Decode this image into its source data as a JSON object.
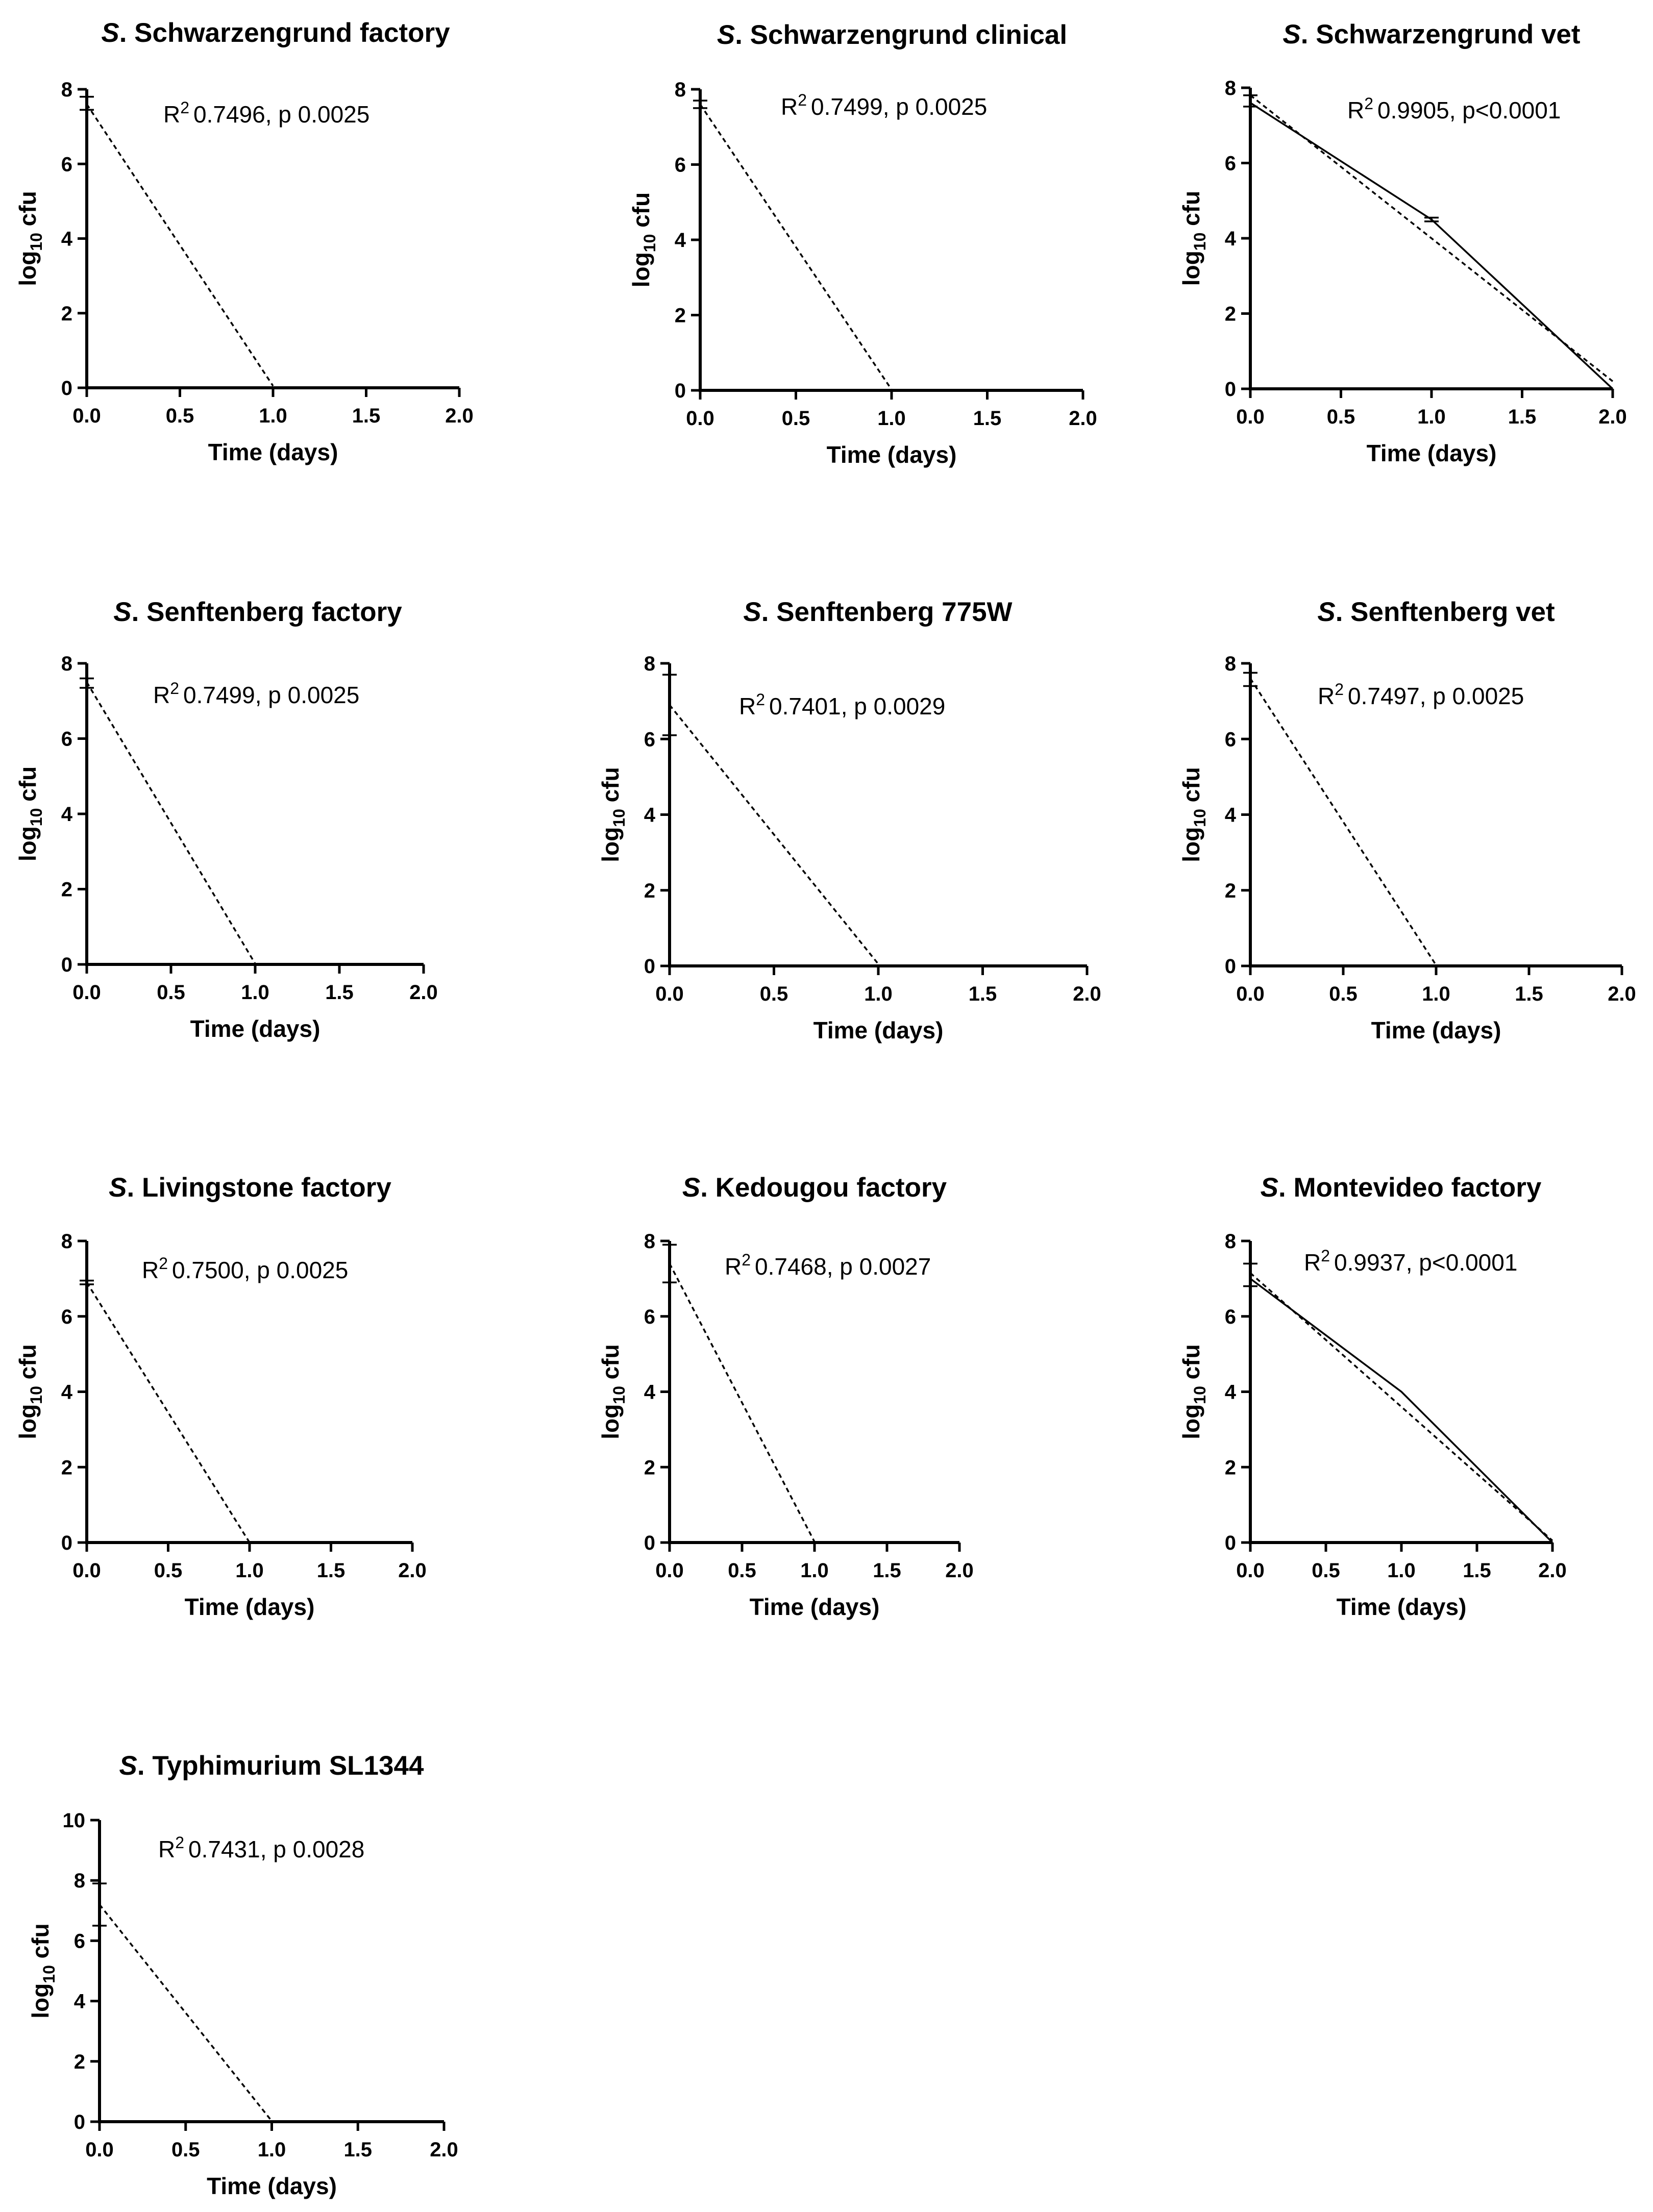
{
  "chart_data": [
    {
      "type": "line",
      "title_prefix": "S",
      "title": ". Schwarzengrund factory",
      "xlabel": "Time (days)",
      "ylabel": "log10 cfu",
      "xlim": [
        0,
        2
      ],
      "ylim": [
        0,
        8
      ],
      "xticks": [
        "0.0",
        "0.5",
        "1.0",
        "1.5",
        "2.0"
      ],
      "yticks": [
        "0",
        "2",
        "4",
        "6",
        "8"
      ],
      "annotation": "0.7496, p 0.0025",
      "mean_points": [
        [
          0,
          7.6
        ],
        [
          1,
          0
        ]
      ],
      "error_bars": [
        [
          0,
          7.45,
          7.8
        ],
        [
          1,
          0,
          0
        ]
      ],
      "fit_line": [
        [
          0,
          7.6
        ],
        [
          1,
          0.05
        ]
      ]
    },
    {
      "type": "line",
      "title_prefix": "S",
      "title": ". Schwarzengrund clinical",
      "xlabel": "Time (days)",
      "ylabel": "log10 cfu",
      "xlim": [
        0,
        2
      ],
      "ylim": [
        0,
        8
      ],
      "xticks": [
        "0.0",
        "0.5",
        "1.0",
        "1.5",
        "2.0"
      ],
      "yticks": [
        "0",
        "2",
        "4",
        "6",
        "8"
      ],
      "annotation": "0.7499, p 0.0025",
      "mean_points": [
        [
          0,
          7.6
        ],
        [
          1,
          0
        ]
      ],
      "error_bars": [
        [
          0,
          7.5,
          7.7
        ],
        [
          1,
          0,
          0
        ]
      ],
      "fit_line": [
        [
          0,
          7.6
        ],
        [
          1,
          0.02
        ]
      ]
    },
    {
      "type": "line",
      "title_prefix": "S",
      "title": ". Schwarzengrund vet",
      "xlabel": "Time (days)",
      "ylabel": "log10 cfu",
      "xlim": [
        0,
        2
      ],
      "ylim": [
        0,
        8
      ],
      "xticks": [
        "0.0",
        "0.5",
        "1.0",
        "1.5",
        "2.0"
      ],
      "yticks": [
        "0",
        "2",
        "4",
        "6",
        "8"
      ],
      "annotation": "0.9905, p<0.0001",
      "mean_points": [
        [
          0,
          7.6
        ],
        [
          1,
          4.5
        ],
        [
          2,
          0
        ]
      ],
      "error_bars": [
        [
          0,
          7.5,
          7.8
        ],
        [
          1,
          4.45,
          4.55
        ],
        [
          2,
          0,
          0
        ]
      ],
      "fit_line": [
        [
          0,
          7.8
        ],
        [
          2,
          0.2
        ]
      ]
    },
    {
      "type": "line",
      "title_prefix": "S",
      "title": ". Senftenberg factory",
      "xlabel": "Time (days)",
      "ylabel": "log10 cfu",
      "xlim": [
        0,
        2
      ],
      "ylim": [
        0,
        8
      ],
      "xticks": [
        "0.0",
        "0.5",
        "1.0",
        "1.5",
        "2.0"
      ],
      "yticks": [
        "0",
        "2",
        "4",
        "6",
        "8"
      ],
      "annotation": "0.7499, p 0.0025",
      "mean_points": [
        [
          0,
          7.5
        ],
        [
          1,
          0
        ]
      ],
      "error_bars": [
        [
          0,
          7.35,
          7.6
        ],
        [
          1,
          0,
          0
        ]
      ],
      "fit_line": [
        [
          0,
          7.5
        ],
        [
          1,
          0.02
        ]
      ]
    },
    {
      "type": "line",
      "title_prefix": "S",
      "title": ". Senftenberg 775W",
      "xlabel": "Time (days)",
      "ylabel": "log10 cfu",
      "xlim": [
        0,
        2
      ],
      "ylim": [
        0,
        8
      ],
      "xticks": [
        "0.0",
        "0.5",
        "1.0",
        "1.5",
        "2.0"
      ],
      "yticks": [
        "0",
        "2",
        "4",
        "6",
        "8"
      ],
      "annotation": "0.7401, p 0.0029",
      "mean_points": [
        [
          0,
          6.9
        ],
        [
          1,
          0
        ]
      ],
      "error_bars": [
        [
          0,
          6.1,
          7.7
        ],
        [
          1,
          0,
          0
        ]
      ],
      "fit_line": [
        [
          0,
          6.9
        ],
        [
          1,
          0.05
        ]
      ]
    },
    {
      "type": "line",
      "title_prefix": "S",
      "title": ". Senftenberg vet",
      "xlabel": "Time (days)",
      "ylabel": "log10 cfu",
      "xlim": [
        0,
        2
      ],
      "ylim": [
        0,
        8
      ],
      "xticks": [
        "0.0",
        "0.5",
        "1.0",
        "1.5",
        "2.0"
      ],
      "yticks": [
        "0",
        "2",
        "4",
        "6",
        "8"
      ],
      "annotation": "0.7497, p 0.0025",
      "mean_points": [
        [
          0,
          7.6
        ],
        [
          1,
          0
        ]
      ],
      "error_bars": [
        [
          0,
          7.4,
          7.75
        ],
        [
          1,
          0,
          0
        ]
      ],
      "fit_line": [
        [
          0,
          7.6
        ],
        [
          1,
          0.02
        ]
      ]
    },
    {
      "type": "line",
      "title_prefix": "S",
      "title": ". Livingstone factory",
      "xlabel": "Time (days)",
      "ylabel": "log10 cfu",
      "xlim": [
        0,
        2
      ],
      "ylim": [
        0,
        8
      ],
      "xticks": [
        "0.0",
        "0.5",
        "1.0",
        "1.5",
        "2.0"
      ],
      "yticks": [
        "0",
        "2",
        "4",
        "6",
        "8"
      ],
      "annotation": "0.7500, p 0.0025",
      "mean_points": [
        [
          0,
          6.9
        ],
        [
          1,
          0
        ]
      ],
      "error_bars": [
        [
          0,
          6.85,
          6.95
        ],
        [
          1,
          0,
          0
        ]
      ],
      "fit_line": [
        [
          0,
          6.9
        ],
        [
          1,
          0
        ]
      ]
    },
    {
      "type": "line",
      "title_prefix": "S",
      "title": ". Kedougou factory",
      "xlabel": "Time (days)",
      "ylabel": "log10 cfu",
      "xlim": [
        0,
        2
      ],
      "ylim": [
        0,
        8
      ],
      "xticks": [
        "0.0",
        "0.5",
        "1.0",
        "1.5",
        "2.0"
      ],
      "yticks": [
        "0",
        "2",
        "4",
        "6",
        "8"
      ],
      "annotation": "0.7468, p 0.0027",
      "mean_points": [
        [
          0,
          7.4
        ],
        [
          1,
          0
        ]
      ],
      "error_bars": [
        [
          0,
          6.9,
          7.9
        ],
        [
          1,
          0,
          0
        ]
      ],
      "fit_line": [
        [
          0,
          7.4
        ],
        [
          1,
          0.02
        ]
      ]
    },
    {
      "type": "line",
      "title_prefix": "S",
      "title": ". Montevideo factory",
      "xlabel": "Time (days)",
      "ylabel": "log10 cfu",
      "xlim": [
        0,
        2
      ],
      "ylim": [
        0,
        8
      ],
      "xticks": [
        "0.0",
        "0.5",
        "1.0",
        "1.5",
        "2.0"
      ],
      "yticks": [
        "0",
        "2",
        "4",
        "6",
        "8"
      ],
      "annotation": "0.9937, p<0.0001",
      "mean_points": [
        [
          0,
          7.0
        ],
        [
          1,
          4.0
        ],
        [
          2,
          0
        ]
      ],
      "error_bars": [
        [
          0,
          6.8,
          7.4
        ],
        [
          1,
          4.0,
          4.0
        ],
        [
          2,
          0,
          0
        ]
      ],
      "fit_line": [
        [
          0,
          7.15
        ],
        [
          2,
          0.05
        ]
      ]
    },
    {
      "type": "line",
      "title_prefix": "S",
      "title": ". Typhimurium SL1344",
      "xlabel": "Time (days)",
      "ylabel": "log10 cfu",
      "xlim": [
        0,
        2
      ],
      "ylim": [
        0,
        10
      ],
      "xticks": [
        "0.0",
        "0.5",
        "1.0",
        "1.5",
        "2.0"
      ],
      "yticks": [
        "0",
        "2",
        "4",
        "6",
        "8",
        "10"
      ],
      "annotation": "0.7431, p 0.0028",
      "mean_points": [
        [
          0,
          7.2
        ],
        [
          1,
          0
        ]
      ],
      "error_bars": [
        [
          0,
          6.5,
          7.9
        ],
        [
          1,
          0,
          0
        ]
      ],
      "fit_line": [
        [
          0,
          7.2
        ],
        [
          1,
          0.02
        ]
      ]
    }
  ]
}
